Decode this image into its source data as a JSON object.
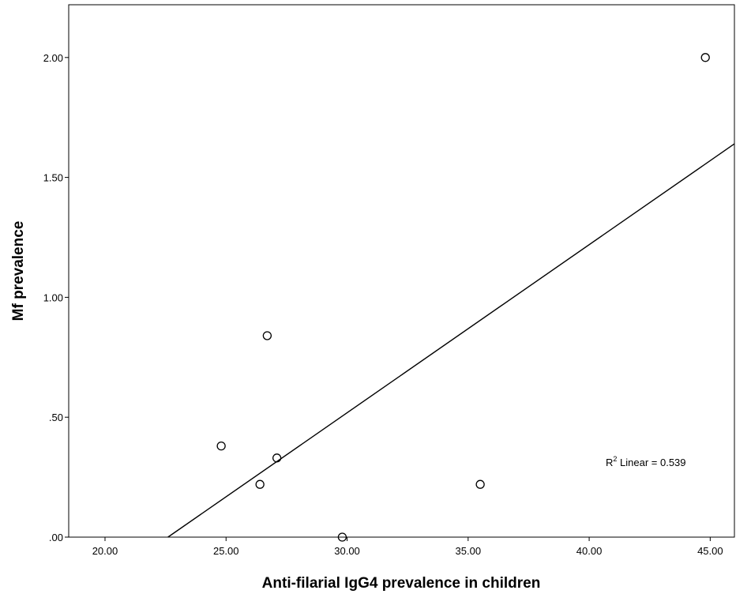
{
  "chart_data": {
    "type": "scatter",
    "xlabel": "Anti-filarial IgG4 prevalence in children",
    "ylabel": "Mf prevalence",
    "xlim": [
      18.5,
      46
    ],
    "ylim": [
      0,
      2.22
    ],
    "x_ticks": [
      20,
      25,
      30,
      35,
      40,
      45
    ],
    "x_tick_labels": [
      "20.00",
      "25.00",
      "30.00",
      "35.00",
      "40.00",
      "45.00"
    ],
    "y_ticks": [
      0,
      0.5,
      1.0,
      1.5,
      2.0
    ],
    "y_tick_labels": [
      ".00",
      ".50",
      "1.00",
      "1.50",
      "2.00"
    ],
    "grid": false,
    "points": [
      {
        "x": 24.8,
        "y": 0.38
      },
      {
        "x": 26.4,
        "y": 0.22
      },
      {
        "x": 26.7,
        "y": 0.84
      },
      {
        "x": 27.1,
        "y": 0.33
      },
      {
        "x": 29.8,
        "y": 0.0
      },
      {
        "x": 35.5,
        "y": 0.22
      },
      {
        "x": 44.8,
        "y": 2.0
      }
    ],
    "fit_line": {
      "type": "linear",
      "points": [
        {
          "x": 22.6,
          "y": 0.0
        },
        {
          "x": 46.0,
          "y": 1.64
        }
      ]
    },
    "annotation": {
      "prefix": "R",
      "superscript": "2",
      "text": " Linear = 0.539"
    },
    "colors": {
      "marker": "#000000",
      "line": "#000000",
      "background": "#ffffff"
    }
  }
}
